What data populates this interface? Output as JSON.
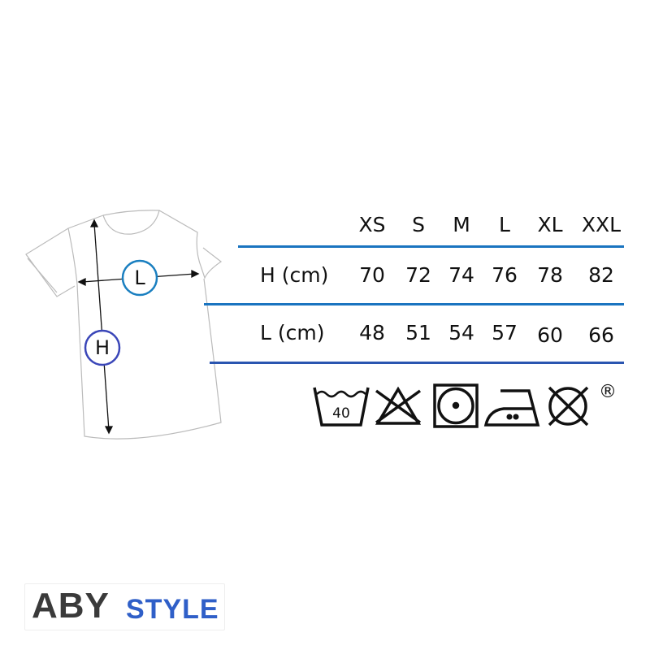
{
  "diagram": {
    "length_marker": "L",
    "height_marker": "H",
    "marker_colors": {
      "L": "#1a7fc0",
      "H": "#3a46b8"
    }
  },
  "size_table": {
    "columns": [
      "XS",
      "S",
      "M",
      "L",
      "XL",
      "XXL"
    ],
    "rows": [
      {
        "label": "H (cm)",
        "values": [
          "70",
          "72",
          "74",
          "76",
          "78",
          "82"
        ]
      },
      {
        "label": "L (cm)",
        "values": [
          "48",
          "51",
          "54",
          "57",
          "60",
          "66"
        ]
      }
    ],
    "rule_color": "#1a74c0"
  },
  "care_icons": {
    "items": [
      "wash-40-icon",
      "do-not-bleach-icon",
      "tumble-dry-low-icon",
      "iron-medium-icon",
      "do-not-dry-clean-icon"
    ],
    "wash_temperature": "40",
    "registered_mark": "®"
  },
  "brand": {
    "logo_part1": "ABY",
    "logo_part2": "STYLE",
    "colors": {
      "dark": "#3a3a3a",
      "accent": "#2f5fc8"
    }
  }
}
